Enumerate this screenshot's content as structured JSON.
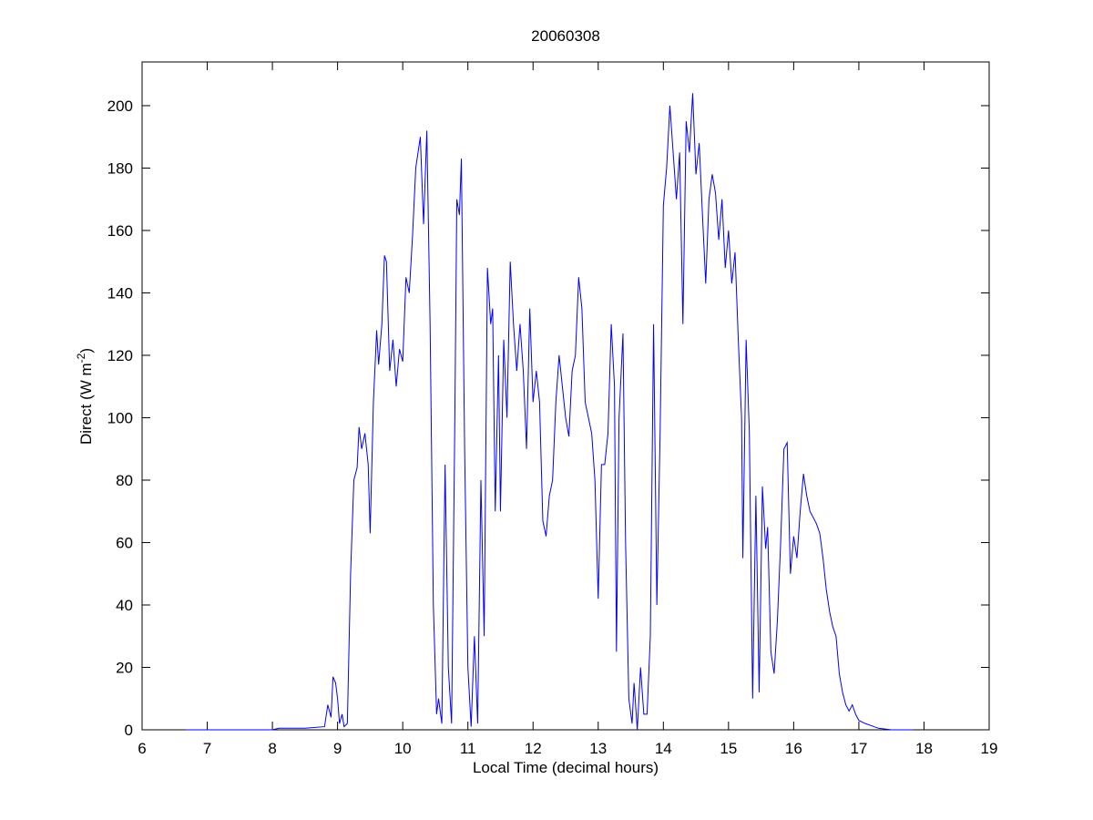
{
  "chart_data": {
    "type": "line",
    "title": "20060308",
    "xlabel": "Local Time (decimal hours)",
    "ylabel_parts": [
      "Direct (W m",
      "-2",
      ")"
    ],
    "x": [
      6.67,
      8.0,
      8.1,
      8.5,
      8.8,
      8.85,
      8.9,
      8.93,
      8.97,
      9.0,
      9.03,
      9.07,
      9.1,
      9.15,
      9.2,
      9.25,
      9.3,
      9.33,
      9.37,
      9.42,
      9.47,
      9.5,
      9.55,
      9.6,
      9.63,
      9.68,
      9.72,
      9.75,
      9.8,
      9.85,
      9.9,
      9.95,
      10.0,
      10.05,
      10.1,
      10.15,
      10.2,
      10.27,
      10.32,
      10.37,
      10.42,
      10.47,
      10.52,
      10.55,
      10.6,
      10.65,
      10.7,
      10.75,
      10.8,
      10.83,
      10.87,
      10.9,
      10.95,
      11.0,
      11.05,
      11.1,
      11.15,
      11.2,
      11.25,
      11.3,
      11.35,
      11.38,
      11.42,
      11.47,
      11.5,
      11.55,
      11.6,
      11.65,
      11.7,
      11.75,
      11.8,
      11.85,
      11.9,
      11.95,
      12.0,
      12.05,
      12.1,
      12.15,
      12.2,
      12.25,
      12.3,
      12.35,
      12.4,
      12.45,
      12.5,
      12.55,
      12.6,
      12.65,
      12.7,
      12.75,
      12.8,
      12.85,
      12.9,
      12.95,
      13.0,
      13.05,
      13.1,
      13.15,
      13.2,
      13.25,
      13.28,
      13.32,
      13.38,
      13.42,
      13.47,
      13.52,
      13.55,
      13.6,
      13.65,
      13.7,
      13.75,
      13.8,
      13.85,
      13.9,
      13.95,
      14.0,
      14.05,
      14.1,
      14.15,
      14.2,
      14.25,
      14.3,
      14.35,
      14.4,
      14.45,
      14.5,
      14.55,
      14.6,
      14.65,
      14.7,
      14.75,
      14.8,
      14.85,
      14.9,
      14.95,
      15.0,
      15.05,
      15.1,
      15.15,
      15.2,
      15.22,
      15.27,
      15.32,
      15.37,
      15.42,
      15.47,
      15.52,
      15.57,
      15.6,
      15.65,
      15.7,
      15.75,
      15.8,
      15.85,
      15.9,
      15.95,
      16.0,
      16.05,
      16.1,
      16.15,
      16.2,
      16.25,
      16.3,
      16.35,
      16.4,
      16.45,
      16.5,
      16.55,
      16.6,
      16.65,
      16.7,
      16.75,
      16.8,
      16.85,
      16.9,
      16.95,
      17.0,
      17.1,
      17.3,
      17.5,
      17.83
    ],
    "series": [
      {
        "color": "#0000ff",
        "values": [
          0,
          0,
          0.5,
          0.5,
          1,
          8,
          4,
          17,
          15,
          10,
          2,
          5,
          1,
          2,
          50,
          80,
          84,
          97,
          90,
          95,
          85,
          63,
          105,
          128,
          117,
          130,
          152,
          150,
          115,
          125,
          110,
          122,
          118,
          145,
          140,
          158,
          180,
          190,
          162,
          192,
          130,
          40,
          5,
          10,
          2,
          85,
          20,
          2,
          100,
          170,
          165,
          183,
          90,
          20,
          1,
          30,
          2,
          80,
          30,
          148,
          130,
          135,
          70,
          120,
          70,
          125,
          100,
          150,
          130,
          115,
          130,
          115,
          90,
          135,
          105,
          115,
          105,
          67,
          62,
          75,
          80,
          105,
          120,
          110,
          100,
          94,
          115,
          120,
          145,
          135,
          105,
          100,
          95,
          80,
          42,
          85,
          85,
          95,
          130,
          110,
          25,
          100,
          127,
          60,
          10,
          2,
          15,
          0,
          20,
          5,
          5,
          30,
          130,
          40,
          95,
          168,
          180,
          200,
          185,
          170,
          185,
          130,
          195,
          185,
          204,
          178,
          188,
          165,
          143,
          170,
          178,
          172,
          157,
          170,
          148,
          160,
          143,
          153,
          125,
          100,
          55,
          125,
          95,
          10,
          75,
          12,
          78,
          58,
          65,
          25,
          18,
          35,
          60,
          90,
          92,
          50,
          62,
          55,
          70,
          82,
          75,
          70,
          68,
          66,
          63,
          55,
          45,
          38,
          33,
          30,
          18,
          12,
          8,
          6,
          8,
          5,
          3,
          2,
          0.5,
          0,
          0
        ]
      }
    ],
    "xlim": [
      6,
      19
    ],
    "xticks": [
      6,
      7,
      8,
      9,
      10,
      11,
      12,
      13,
      14,
      15,
      16,
      17,
      18,
      19
    ],
    "ylim": [
      0,
      214
    ],
    "yticks": [
      0,
      20,
      40,
      60,
      80,
      100,
      120,
      140,
      160,
      180,
      200
    ],
    "grid": false
  }
}
